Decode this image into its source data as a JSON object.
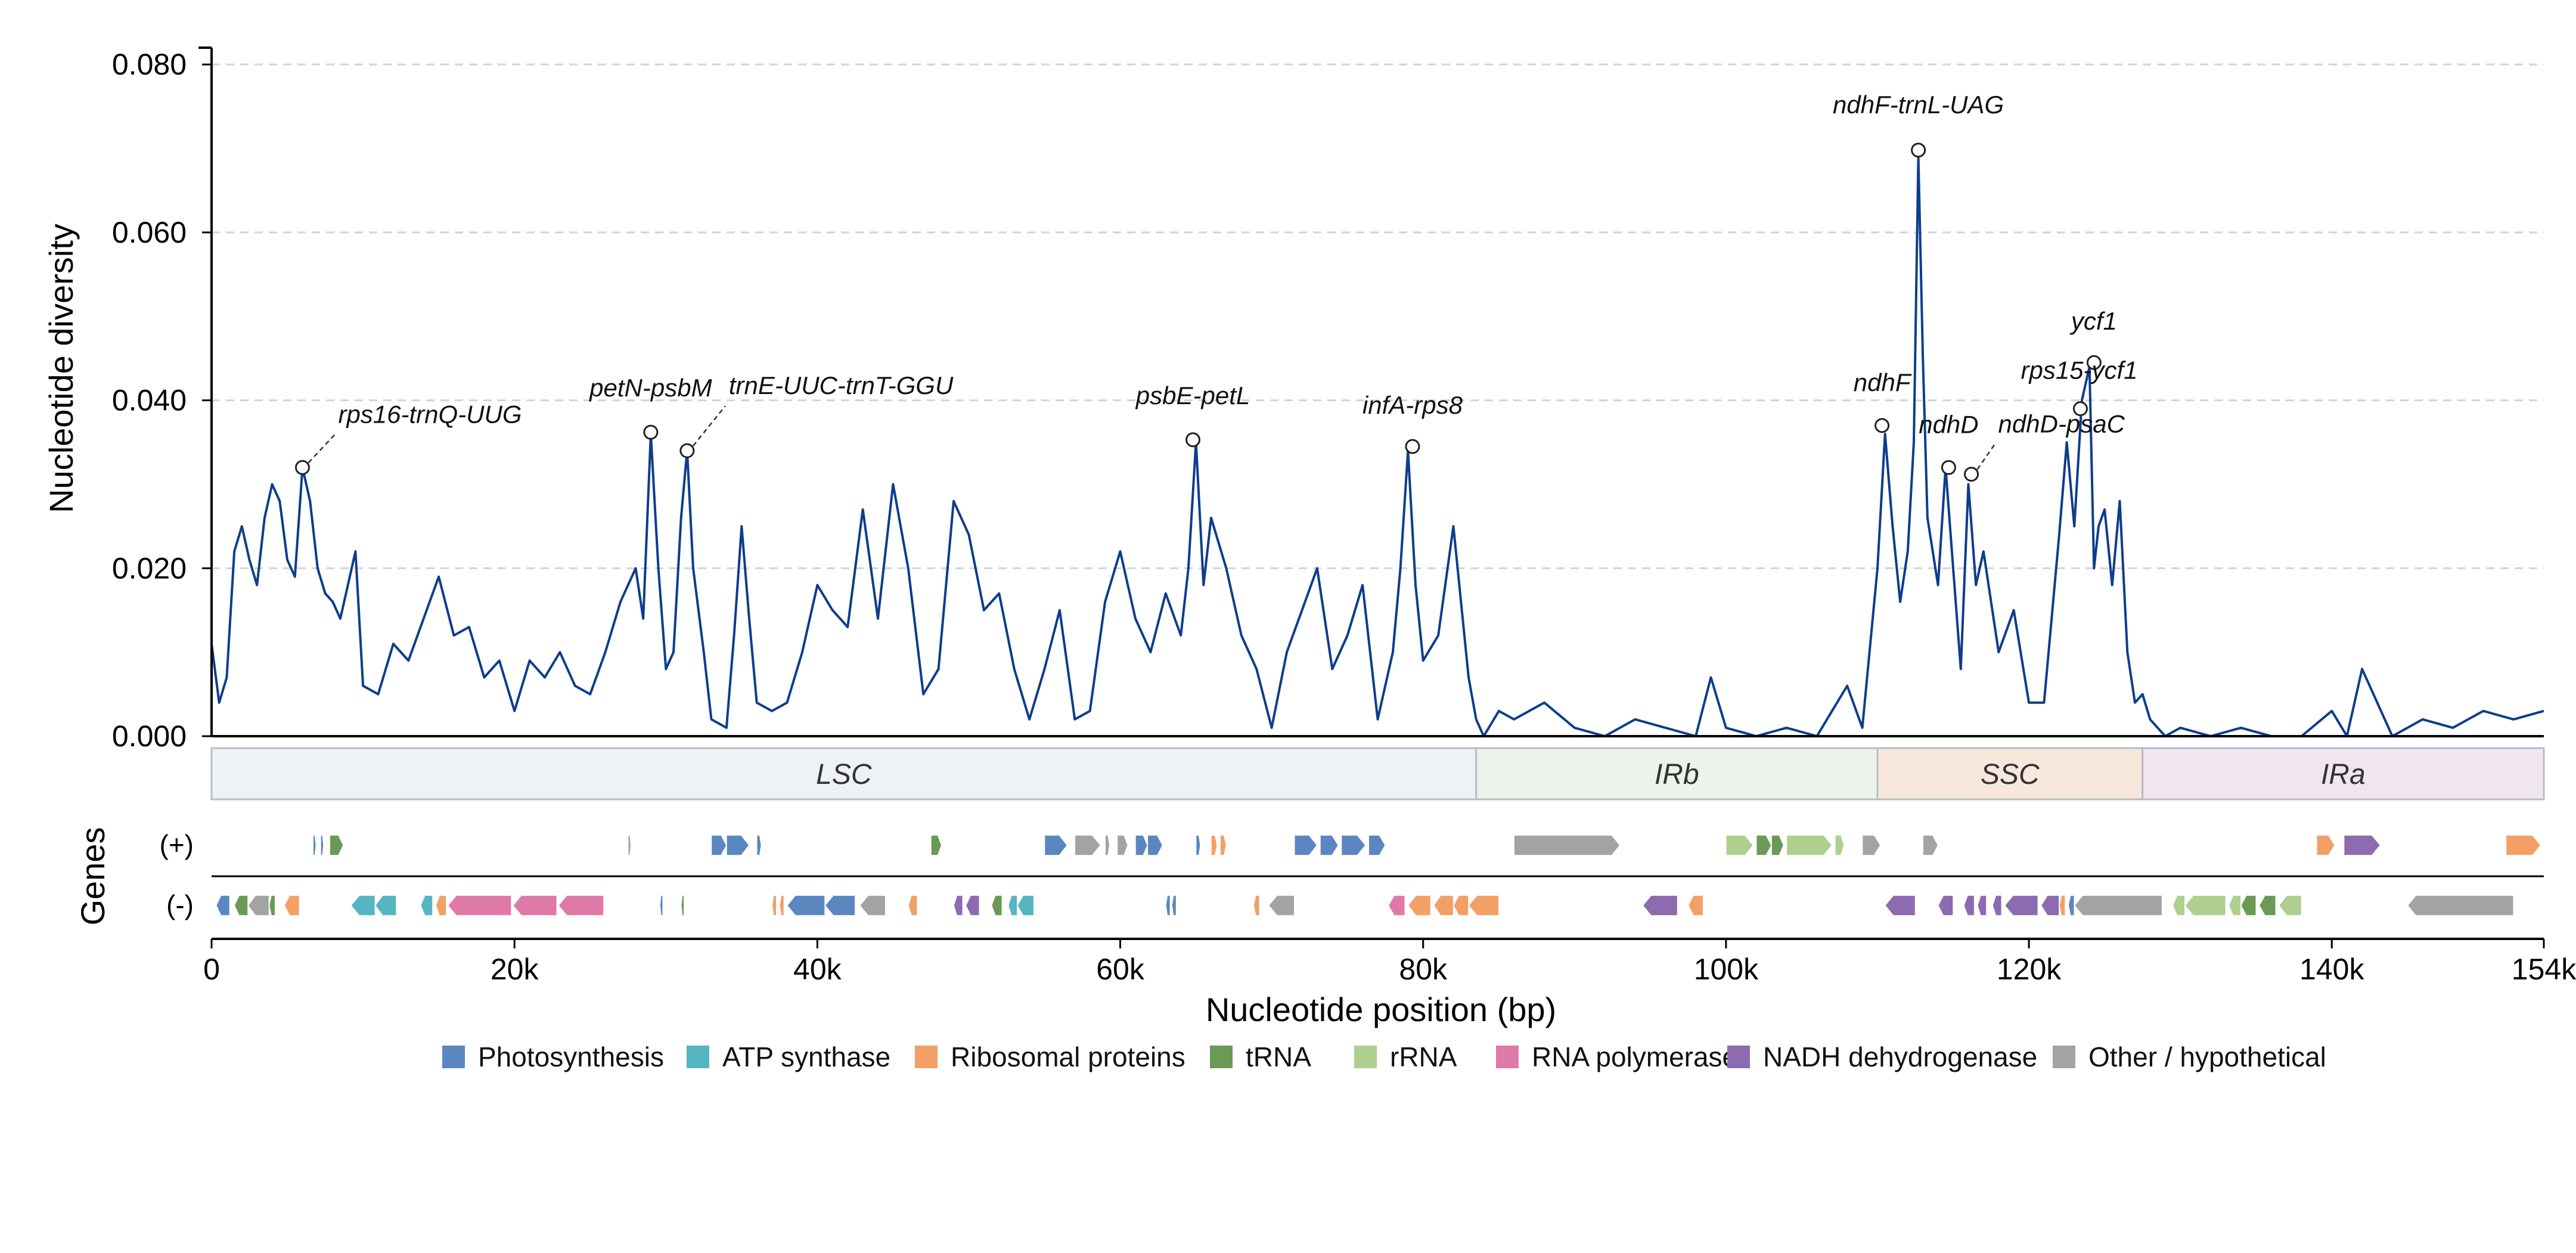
{
  "colors": {
    "line": "#0e3d8c",
    "grid": "#d3d3d3",
    "axis": "#000000",
    "photosynthesis": "#5b87c1",
    "atp": "#55b5c2",
    "ribosomal": "#f2a066",
    "trna": "#6a9a55",
    "rrna": "#aecf8e",
    "rnapol": "#df7aa8",
    "nadh": "#8c6bb0",
    "other": "#a3a3a3"
  },
  "chart_data": {
    "type": "line",
    "xlabel": "Nucleotide position (bp)",
    "ylabel": "Nucleotide diversity",
    "xlim": [
      0,
      154000
    ],
    "ylim": [
      0,
      0.082
    ],
    "x_ticks": [
      0,
      20000,
      40000,
      60000,
      80000,
      100000,
      120000,
      140000,
      154000
    ],
    "x_tick_labels": [
      "0",
      "20k",
      "40k",
      "60k",
      "80k",
      "100k",
      "120k",
      "140k",
      "154k"
    ],
    "y_ticks": [
      0,
      0.02,
      0.04,
      0.06,
      0.08
    ],
    "y_tick_labels": [
      "0.000",
      "0.020",
      "0.040",
      "0.060",
      "0.080"
    ],
    "grid": "horizontal dashed",
    "series": [
      {
        "x": [
          0,
          500,
          1000,
          1500,
          2000,
          2500,
          3000,
          3500,
          4000,
          4500,
          5000,
          5500,
          6000,
          6500,
          7000,
          7500,
          8000,
          8500,
          9000,
          9500,
          10000,
          11000,
          12000,
          13000,
          14000,
          15000,
          16000,
          17000,
          18000,
          19000,
          20000,
          21000,
          22000,
          23000,
          24000,
          25000,
          26000,
          27000,
          28000,
          28500,
          29000,
          29500,
          30000,
          30500,
          31000,
          31400,
          31800,
          32500,
          33000,
          34000,
          34500,
          35000,
          35500,
          36000,
          37000,
          38000,
          39000,
          40000,
          41000,
          42000,
          43000,
          44000,
          45000,
          46000,
          47000,
          48000,
          49000,
          50000,
          51000,
          52000,
          53000,
          54000,
          55000,
          56000,
          57000,
          58000,
          59000,
          60000,
          61000,
          62000,
          63000,
          64000,
          64500,
          65000,
          65500,
          66000,
          67000,
          68000,
          69000,
          70000,
          71000,
          72000,
          73000,
          74000,
          75000,
          76000,
          77000,
          78000,
          78500,
          79000,
          79500,
          80000,
          81000,
          82000,
          83000,
          83500,
          84000,
          85000,
          86000,
          88000,
          90000,
          92000,
          94000,
          96000,
          98000,
          99000,
          100000,
          102000,
          104000,
          106000,
          107000,
          108000,
          109000,
          110000,
          110500,
          111000,
          111500,
          112000,
          112400,
          112700,
          113000,
          113300,
          114000,
          114500,
          115000,
          115500,
          116000,
          116500,
          117000,
          118000,
          119000,
          120000,
          121000,
          122000,
          122500,
          123000,
          123500,
          124000,
          124300,
          124600,
          125000,
          125500,
          126000,
          126500,
          127000,
          127500,
          128000,
          129000,
          130000,
          132000,
          134000,
          136000,
          138000,
          140000,
          141000,
          142000,
          144000,
          146000,
          148000,
          150000,
          152000,
          154000
        ],
        "y": [
          0.011,
          0.004,
          0.007,
          0.022,
          0.025,
          0.021,
          0.018,
          0.026,
          0.03,
          0.028,
          0.021,
          0.019,
          0.032,
          0.028,
          0.02,
          0.017,
          0.016,
          0.014,
          0.018,
          0.022,
          0.006,
          0.005,
          0.011,
          0.009,
          0.014,
          0.019,
          0.012,
          0.013,
          0.007,
          0.009,
          0.003,
          0.009,
          0.007,
          0.01,
          0.006,
          0.005,
          0.01,
          0.016,
          0.02,
          0.014,
          0.036,
          0.02,
          0.008,
          0.01,
          0.026,
          0.034,
          0.02,
          0.01,
          0.002,
          0.001,
          0.012,
          0.025,
          0.014,
          0.004,
          0.003,
          0.004,
          0.01,
          0.018,
          0.015,
          0.013,
          0.027,
          0.014,
          0.03,
          0.02,
          0.005,
          0.008,
          0.028,
          0.024,
          0.015,
          0.017,
          0.008,
          0.002,
          0.008,
          0.015,
          0.002,
          0.003,
          0.016,
          0.022,
          0.014,
          0.01,
          0.017,
          0.012,
          0.02,
          0.035,
          0.018,
          0.026,
          0.02,
          0.012,
          0.008,
          0.001,
          0.01,
          0.015,
          0.02,
          0.008,
          0.012,
          0.018,
          0.002,
          0.01,
          0.02,
          0.034,
          0.018,
          0.009,
          0.012,
          0.025,
          0.007,
          0.002,
          0.0,
          0.003,
          0.002,
          0.004,
          0.001,
          0.0,
          0.002,
          0.001,
          0.0,
          0.007,
          0.001,
          0.0,
          0.001,
          0.0,
          0.003,
          0.006,
          0.001,
          0.02,
          0.036,
          0.025,
          0.016,
          0.022,
          0.035,
          0.069,
          0.045,
          0.026,
          0.018,
          0.032,
          0.02,
          0.008,
          0.03,
          0.018,
          0.022,
          0.01,
          0.015,
          0.004,
          0.004,
          0.024,
          0.035,
          0.025,
          0.04,
          0.044,
          0.02,
          0.025,
          0.027,
          0.018,
          0.028,
          0.01,
          0.004,
          0.005,
          0.002,
          0.0,
          0.001,
          0.0,
          0.001,
          0.0,
          0.0,
          0.003,
          0.0,
          0.008,
          0.0,
          0.002,
          0.001,
          0.003,
          0.002,
          0.003
        ]
      }
    ],
    "peaks": [
      {
        "label": "rps16-trnQ-UUG",
        "x": 6000,
        "y": 0.032,
        "leader": true
      },
      {
        "label": "petN-psbM",
        "x": 29000,
        "y": 0.0362,
        "leader": false
      },
      {
        "label": "trnE-UUC-trnT-GGU",
        "x": 31400,
        "y": 0.034,
        "leader": true
      },
      {
        "label": "psbE-petL",
        "x": 64800,
        "y": 0.0353,
        "leader": false
      },
      {
        "label": "infA-rps8",
        "x": 79300,
        "y": 0.0345,
        "leader": false
      },
      {
        "label": "ndhF",
        "x": 110300,
        "y": 0.037,
        "leader": false
      },
      {
        "label": "ndhF-trnL-UAG",
        "x": 112700,
        "y": 0.0698,
        "leader": false
      },
      {
        "label": "ndhD",
        "x": 114700,
        "y": 0.032,
        "leader": false
      },
      {
        "label": "ndhD-psaC",
        "x": 116200,
        "y": 0.0312,
        "leader": true
      },
      {
        "label": "ycf1",
        "x": 124300,
        "y": 0.0445,
        "leader": false
      },
      {
        "label": "rps15-ycf1",
        "x": 123400,
        "y": 0.039,
        "leader": false
      }
    ],
    "regions": [
      {
        "label": "LSC",
        "start": 0,
        "end": 83500,
        "color": "#eef2f6"
      },
      {
        "label": "IRb",
        "start": 83500,
        "end": 110000,
        "color": "#ecf3ea"
      },
      {
        "label": "SSC",
        "start": 110000,
        "end": 127500,
        "color": "#f8e8dc"
      },
      {
        "label": "IRa",
        "start": 127500,
        "end": 154000,
        "color": "#f1e5f0"
      }
    ],
    "genes_axis_label": "Genes",
    "strands": {
      "plus": "(+)",
      "minus": "(-)"
    },
    "genes": [
      {
        "strand": "+",
        "s": 6700,
        "e": 6900,
        "c": "photosynthesis"
      },
      {
        "strand": "+",
        "s": 7200,
        "e": 7400,
        "c": "photosynthesis"
      },
      {
        "strand": "+",
        "s": 7800,
        "e": 8700,
        "c": "trna"
      },
      {
        "strand": "+",
        "s": 27500,
        "e": 27700,
        "c": "other"
      },
      {
        "strand": "+",
        "s": 33000,
        "e": 34000,
        "c": "photosynthesis"
      },
      {
        "strand": "+",
        "s": 34000,
        "e": 35500,
        "c": "photosynthesis"
      },
      {
        "strand": "+",
        "s": 36000,
        "e": 36300,
        "c": "photosynthesis"
      },
      {
        "strand": "+",
        "s": 47500,
        "e": 48200,
        "c": "trna"
      },
      {
        "strand": "+",
        "s": 55000,
        "e": 56500,
        "c": "photosynthesis"
      },
      {
        "strand": "+",
        "s": 57000,
        "e": 58700,
        "c": "other"
      },
      {
        "strand": "+",
        "s": 59000,
        "e": 59300,
        "c": "other"
      },
      {
        "strand": "+",
        "s": 59800,
        "e": 60500,
        "c": "other"
      },
      {
        "strand": "+",
        "s": 61000,
        "e": 61800,
        "c": "photosynthesis"
      },
      {
        "strand": "+",
        "s": 61800,
        "e": 62800,
        "c": "photosynthesis"
      },
      {
        "strand": "+",
        "s": 65000,
        "e": 65300,
        "c": "photosynthesis"
      },
      {
        "strand": "+",
        "s": 66000,
        "e": 66400,
        "c": "ribosomal"
      },
      {
        "strand": "+",
        "s": 66600,
        "e": 67000,
        "c": "ribosomal"
      },
      {
        "strand": "+",
        "s": 71500,
        "e": 73000,
        "c": "photosynthesis"
      },
      {
        "strand": "+",
        "s": 73200,
        "e": 74400,
        "c": "photosynthesis"
      },
      {
        "strand": "+",
        "s": 74600,
        "e": 76200,
        "c": "photosynthesis"
      },
      {
        "strand": "+",
        "s": 76400,
        "e": 77500,
        "c": "photosynthesis"
      },
      {
        "strand": "+",
        "s": 86000,
        "e": 93000,
        "c": "other"
      },
      {
        "strand": "+",
        "s": 100000,
        "e": 101800,
        "c": "rrna"
      },
      {
        "strand": "+",
        "s": 102000,
        "e": 103000,
        "c": "trna"
      },
      {
        "strand": "+",
        "s": 103000,
        "e": 103800,
        "c": "trna"
      },
      {
        "strand": "+",
        "s": 104000,
        "e": 107000,
        "c": "rrna"
      },
      {
        "strand": "+",
        "s": 107200,
        "e": 107800,
        "c": "rrna"
      },
      {
        "strand": "+",
        "s": 109000,
        "e": 110200,
        "c": "other"
      },
      {
        "strand": "+",
        "s": 113000,
        "e": 114000,
        "c": "other"
      },
      {
        "strand": "+",
        "s": 139000,
        "e": 140200,
        "c": "ribosomal"
      },
      {
        "strand": "+",
        "s": 140800,
        "e": 143200,
        "c": "nadh"
      },
      {
        "strand": "+",
        "s": 151500,
        "e": 153800,
        "c": "ribosomal"
      },
      {
        "strand": "-",
        "s": 300,
        "e": 1200,
        "c": "photosynthesis"
      },
      {
        "strand": "-",
        "s": 1500,
        "e": 2400,
        "c": "trna"
      },
      {
        "strand": "-",
        "s": 2400,
        "e": 3800,
        "c": "other"
      },
      {
        "strand": "-",
        "s": 3800,
        "e": 4200,
        "c": "trna"
      },
      {
        "strand": "-",
        "s": 4800,
        "e": 5800,
        "c": "ribosomal"
      },
      {
        "strand": "-",
        "s": 9200,
        "e": 10800,
        "c": "atp"
      },
      {
        "strand": "-",
        "s": 10800,
        "e": 12200,
        "c": "atp"
      },
      {
        "strand": "-",
        "s": 13800,
        "e": 14600,
        "c": "atp"
      },
      {
        "strand": "-",
        "s": 14800,
        "e": 15500,
        "c": "ribosomal"
      },
      {
        "strand": "-",
        "s": 15600,
        "e": 19800,
        "c": "rnapol"
      },
      {
        "strand": "-",
        "s": 19900,
        "e": 22800,
        "c": "rnapol"
      },
      {
        "strand": "-",
        "s": 22900,
        "e": 25900,
        "c": "rnapol"
      },
      {
        "strand": "-",
        "s": 29600,
        "e": 29800,
        "c": "photosynthesis"
      },
      {
        "strand": "-",
        "s": 31000,
        "e": 31200,
        "c": "trna"
      },
      {
        "strand": "-",
        "s": 37000,
        "e": 37300,
        "c": "ribosomal"
      },
      {
        "strand": "-",
        "s": 37500,
        "e": 37800,
        "c": "ribosomal"
      },
      {
        "strand": "-",
        "s": 38000,
        "e": 40500,
        "c": "photosynthesis"
      },
      {
        "strand": "-",
        "s": 40500,
        "e": 42500,
        "c": "photosynthesis"
      },
      {
        "strand": "-",
        "s": 42800,
        "e": 44500,
        "c": "other"
      },
      {
        "strand": "-",
        "s": 46000,
        "e": 46600,
        "c": "ribosomal"
      },
      {
        "strand": "-",
        "s": 49000,
        "e": 49600,
        "c": "nadh"
      },
      {
        "strand": "-",
        "s": 49800,
        "e": 50700,
        "c": "nadh"
      },
      {
        "strand": "-",
        "s": 51500,
        "e": 52200,
        "c": "trna"
      },
      {
        "strand": "-",
        "s": 52600,
        "e": 53200,
        "c": "atp"
      },
      {
        "strand": "-",
        "s": 53200,
        "e": 54300,
        "c": "atp"
      },
      {
        "strand": "-",
        "s": 63000,
        "e": 63300,
        "c": "photosynthesis"
      },
      {
        "strand": "-",
        "s": 63400,
        "e": 63700,
        "c": "photosynthesis"
      },
      {
        "strand": "-",
        "s": 68800,
        "e": 69200,
        "c": "ribosomal"
      },
      {
        "strand": "-",
        "s": 69800,
        "e": 71500,
        "c": "other"
      },
      {
        "strand": "-",
        "s": 77700,
        "e": 78800,
        "c": "rnapol"
      },
      {
        "strand": "-",
        "s": 79000,
        "e": 80500,
        "c": "ribosomal"
      },
      {
        "strand": "-",
        "s": 80700,
        "e": 82000,
        "c": "ribosomal"
      },
      {
        "strand": "-",
        "s": 82000,
        "e": 83000,
        "c": "ribosomal"
      },
      {
        "strand": "-",
        "s": 83000,
        "e": 85000,
        "c": "ribosomal"
      },
      {
        "strand": "-",
        "s": 94500,
        "e": 96800,
        "c": "nadh"
      },
      {
        "strand": "-",
        "s": 97500,
        "e": 98500,
        "c": "ribosomal"
      },
      {
        "strand": "-",
        "s": 110500,
        "e": 112500,
        "c": "nadh"
      },
      {
        "strand": "-",
        "s": 114000,
        "e": 115000,
        "c": "nadh"
      },
      {
        "strand": "-",
        "s": 115700,
        "e": 116400,
        "c": "nadh"
      },
      {
        "strand": "-",
        "s": 116600,
        "e": 117200,
        "c": "nadh"
      },
      {
        "strand": "-",
        "s": 117600,
        "e": 118200,
        "c": "nadh"
      },
      {
        "strand": "-",
        "s": 118400,
        "e": 120600,
        "c": "nadh"
      },
      {
        "strand": "-",
        "s": 120800,
        "e": 122000,
        "c": "nadh"
      },
      {
        "strand": "-",
        "s": 122000,
        "e": 122400,
        "c": "ribosomal"
      },
      {
        "strand": "-",
        "s": 122600,
        "e": 123000,
        "c": "photosynthesis"
      },
      {
        "strand": "-",
        "s": 123000,
        "e": 128800,
        "c": "other"
      },
      {
        "strand": "-",
        "s": 129500,
        "e": 130300,
        "c": "rrna"
      },
      {
        "strand": "-",
        "s": 130300,
        "e": 133000,
        "c": "rrna"
      },
      {
        "strand": "-",
        "s": 133200,
        "e": 134000,
        "c": "rrna"
      },
      {
        "strand": "-",
        "s": 134000,
        "e": 135000,
        "c": "trna"
      },
      {
        "strand": "-",
        "s": 135200,
        "e": 136300,
        "c": "trna"
      },
      {
        "strand": "-",
        "s": 136500,
        "e": 138000,
        "c": "rrna"
      },
      {
        "strand": "-",
        "s": 145000,
        "e": 152000,
        "c": "other"
      }
    ],
    "legend": [
      {
        "label": "Photosynthesis",
        "color": "#5b87c1"
      },
      {
        "label": "ATP synthase",
        "color": "#55b5c2"
      },
      {
        "label": "Ribosomal proteins",
        "color": "#f2a066"
      },
      {
        "label": "tRNA",
        "color": "#6a9a55"
      },
      {
        "label": "rRNA",
        "color": "#aecf8e"
      },
      {
        "label": "RNA polymerase",
        "color": "#df7aa8"
      },
      {
        "label": "NADH dehydrogenase",
        "color": "#8c6bb0"
      },
      {
        "label": "Other / hypothetical",
        "color": "#a3a3a3"
      }
    ]
  }
}
